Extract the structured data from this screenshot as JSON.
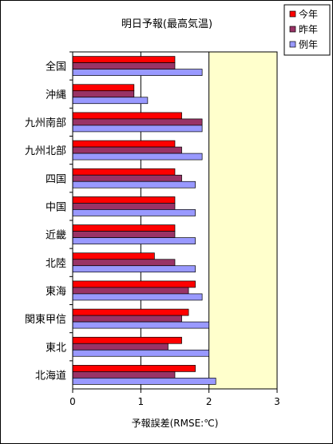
{
  "chart_data": {
    "type": "bar",
    "orientation": "horizontal",
    "title": "明日予報(最高気温)",
    "xlabel": "予報誤差(RMSE:℃)",
    "ylabel": "",
    "xlim": [
      0,
      3
    ],
    "x_ticks": [
      "0",
      "1",
      "2",
      "3"
    ],
    "grid": "vertical",
    "legend_position": "top-right",
    "categories": [
      "全国",
      "沖縄",
      "九州南部",
      "九州北部",
      "四国",
      "中国",
      "近畿",
      "北陸",
      "東海",
      "関東甲信",
      "東北",
      "北海道"
    ],
    "series": [
      {
        "name": "今年",
        "color": "#ff0000",
        "values": [
          1.5,
          0.9,
          1.6,
          1.5,
          1.5,
          1.5,
          1.5,
          1.2,
          1.8,
          1.7,
          1.6,
          1.8
        ]
      },
      {
        "name": "昨年",
        "color": "#993366",
        "values": [
          1.5,
          0.9,
          1.9,
          1.6,
          1.6,
          1.5,
          1.5,
          1.5,
          1.7,
          1.6,
          1.4,
          1.5
        ]
      },
      {
        "name": "例年",
        "color": "#9999ff",
        "values": [
          1.9,
          1.1,
          1.9,
          1.9,
          1.8,
          1.8,
          1.8,
          1.8,
          1.9,
          2.0,
          2.0,
          2.1
        ]
      }
    ],
    "colors": {
      "plot_area_left": "#ffffff",
      "plot_area_right": "#ffffcc",
      "bar_border": "#000000"
    }
  }
}
